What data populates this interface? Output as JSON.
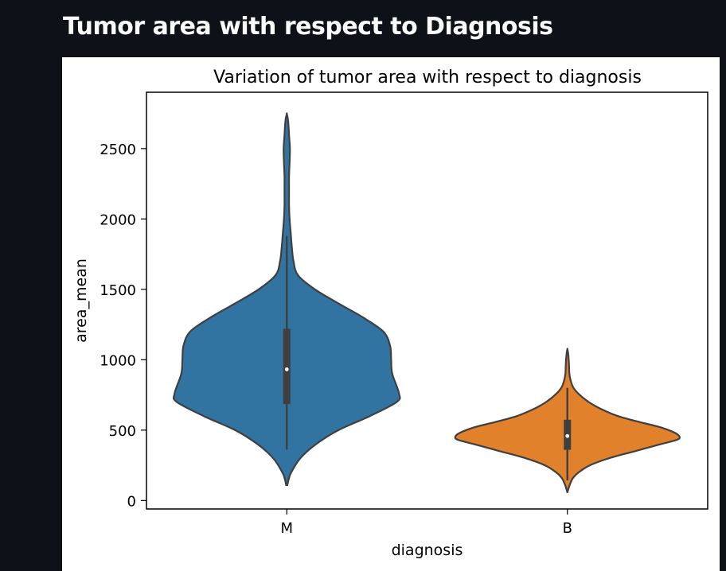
{
  "page": {
    "heading": "Tumor area with respect to Diagnosis"
  },
  "chart_data": {
    "type": "violin",
    "title": "Variation of tumor area with respect to diagnosis",
    "xlabel": "diagnosis",
    "ylabel": "area_mean",
    "categories": [
      "M",
      "B"
    ],
    "ylim": [
      -60,
      2900
    ],
    "yticks": [
      0,
      500,
      1000,
      1500,
      2000,
      2500
    ],
    "grid": false,
    "series": [
      {
        "category": "M",
        "color": "#3274a1",
        "min": 362,
        "q1": 685,
        "median": 932,
        "q3": 1220,
        "whisker_low": 362,
        "whisker_high": 1880,
        "max": 2740,
        "kde_min": 110,
        "profile": [
          [
            110,
            0.005
          ],
          [
            160,
            0.02
          ],
          [
            200,
            0.04
          ],
          [
            300,
            0.12
          ],
          [
            400,
            0.26
          ],
          [
            500,
            0.46
          ],
          [
            600,
            0.74
          ],
          [
            700,
            0.98
          ],
          [
            760,
            1.0
          ],
          [
            900,
            0.94
          ],
          [
            1000,
            0.93
          ],
          [
            1100,
            0.92
          ],
          [
            1200,
            0.86
          ],
          [
            1300,
            0.68
          ],
          [
            1400,
            0.46
          ],
          [
            1500,
            0.25
          ],
          [
            1600,
            0.1
          ],
          [
            1700,
            0.06
          ],
          [
            1800,
            0.045
          ],
          [
            1900,
            0.035
          ],
          [
            2000,
            0.025
          ],
          [
            2100,
            0.02
          ],
          [
            2200,
            0.02
          ],
          [
            2300,
            0.02
          ],
          [
            2400,
            0.025
          ],
          [
            2500,
            0.028
          ],
          [
            2600,
            0.02
          ],
          [
            2700,
            0.012
          ],
          [
            2745,
            0.0
          ]
        ]
      },
      {
        "category": "B",
        "color": "#e1812c",
        "min": 143,
        "q1": 360,
        "median": 458,
        "q3": 574,
        "whisker_low": 143,
        "whisker_high": 800,
        "max": 992,
        "kde_min": 55,
        "profile": [
          [
            55,
            0.0
          ],
          [
            80,
            0.008
          ],
          [
            120,
            0.025
          ],
          [
            160,
            0.05
          ],
          [
            200,
            0.1
          ],
          [
            250,
            0.2
          ],
          [
            300,
            0.37
          ],
          [
            350,
            0.6
          ],
          [
            400,
            0.83
          ],
          [
            430,
            0.97
          ],
          [
            450,
            1.0
          ],
          [
            480,
            0.96
          ],
          [
            520,
            0.83
          ],
          [
            560,
            0.63
          ],
          [
            600,
            0.45
          ],
          [
            650,
            0.3
          ],
          [
            700,
            0.19
          ],
          [
            750,
            0.11
          ],
          [
            800,
            0.055
          ],
          [
            850,
            0.03
          ],
          [
            900,
            0.018
          ],
          [
            950,
            0.015
          ],
          [
            1000,
            0.012
          ],
          [
            1050,
            0.006
          ],
          [
            1075,
            0.0
          ]
        ]
      }
    ]
  }
}
